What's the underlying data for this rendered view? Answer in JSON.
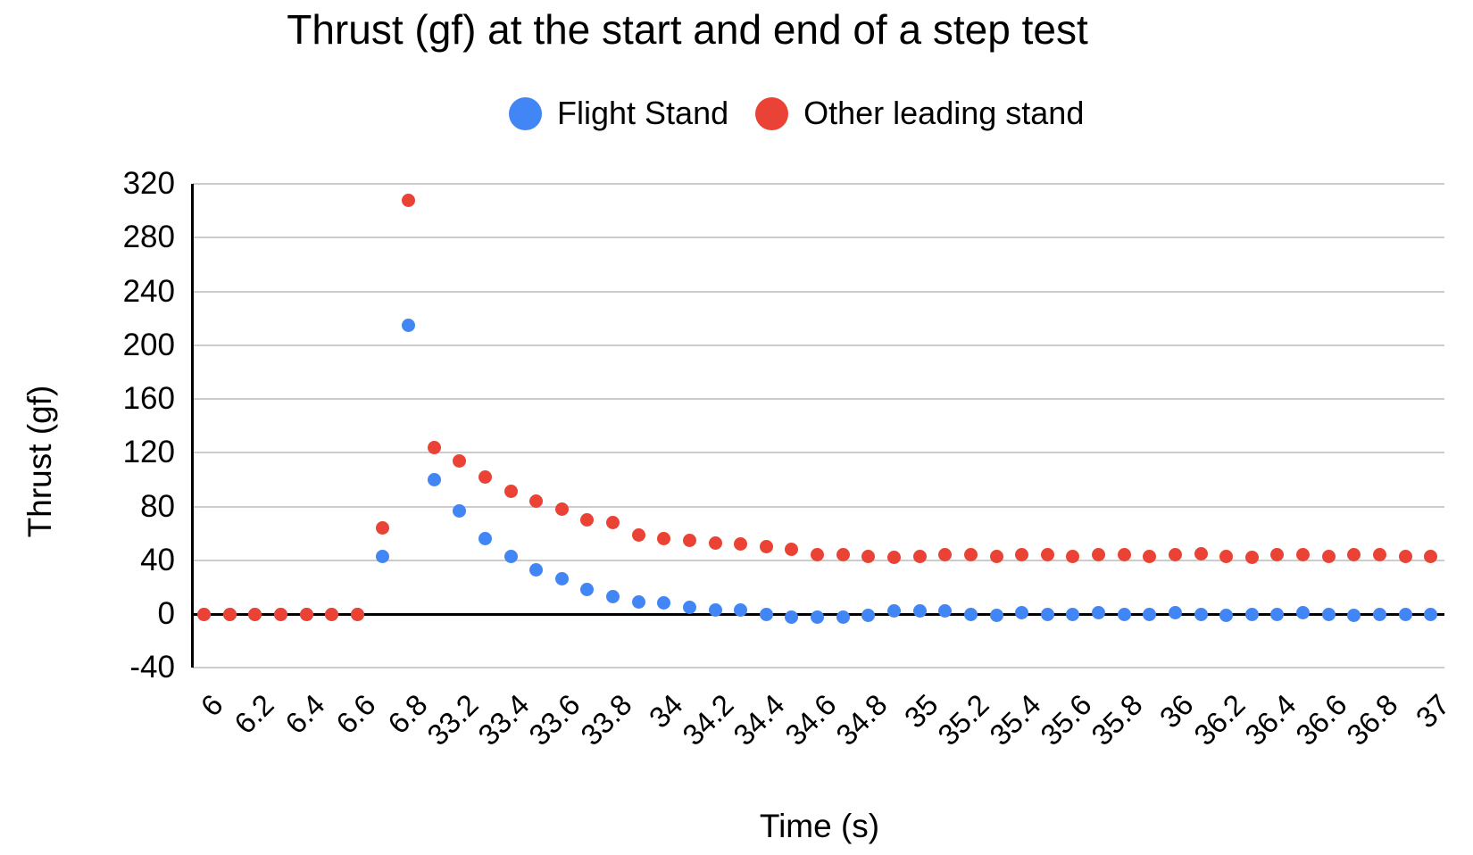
{
  "page": {
    "background": "#ffffff"
  },
  "chart_data": {
    "type": "scatter",
    "title": "Thrust (gf) at the start and end of a step test",
    "xlabel": "Time (s)",
    "ylabel": "Thrust (gf)",
    "legend_position": "top",
    "grid": "horizontal",
    "ylim": [
      -40,
      320
    ],
    "yticks": [
      320,
      280,
      240,
      200,
      160,
      120,
      80,
      40,
      0,
      -40
    ],
    "x_tick_step": 2,
    "categories": [
      "6",
      "6.1",
      "6.2",
      "6.3",
      "6.4",
      "6.5",
      "6.6",
      "6.7",
      "6.8",
      "33.1",
      "33.2",
      "33.3",
      "33.4",
      "33.5",
      "33.6",
      "33.7",
      "33.8",
      "33.9",
      "34",
      "34.1",
      "34.2",
      "34.3",
      "34.4",
      "34.5",
      "34.6",
      "34.7",
      "34.8",
      "34.9",
      "35",
      "35.1",
      "35.2",
      "35.3",
      "35.4",
      "35.5",
      "35.6",
      "35.7",
      "35.8",
      "35.9",
      "36",
      "36.1",
      "36.2",
      "36.3",
      "36.4",
      "36.5",
      "36.6",
      "36.7",
      "36.8",
      "36.9",
      "37"
    ],
    "series": [
      {
        "name": "Flight Stand",
        "color": "#4285F4",
        "values": [
          0,
          0,
          0,
          0,
          0,
          0,
          0,
          43,
          215,
          100,
          77,
          56,
          43,
          33,
          26,
          18,
          13,
          9,
          8,
          5,
          3,
          3,
          0,
          -2,
          -2,
          -2,
          -1,
          2,
          2,
          2,
          0,
          -1,
          1,
          0,
          0,
          1,
          0,
          0,
          1,
          0,
          -1,
          0,
          0,
          1,
          0,
          -1,
          0,
          0,
          0
        ]
      },
      {
        "name": "Other leading stand",
        "color": "#EA4335",
        "values": [
          0,
          0,
          0,
          0,
          0,
          0,
          0,
          64,
          308,
          124,
          114,
          102,
          91,
          84,
          78,
          70,
          68,
          59,
          56,
          55,
          53,
          52,
          50,
          48,
          44,
          44,
          43,
          42,
          43,
          44,
          44,
          43,
          44,
          44,
          43,
          44,
          44,
          43,
          44,
          45,
          43,
          42,
          44,
          44,
          43,
          44,
          44,
          43,
          43
        ]
      }
    ],
    "baseline_value": 0,
    "colors": {
      "grid": "#cccccc",
      "axis": "#000000",
      "text": "#000000"
    }
  }
}
